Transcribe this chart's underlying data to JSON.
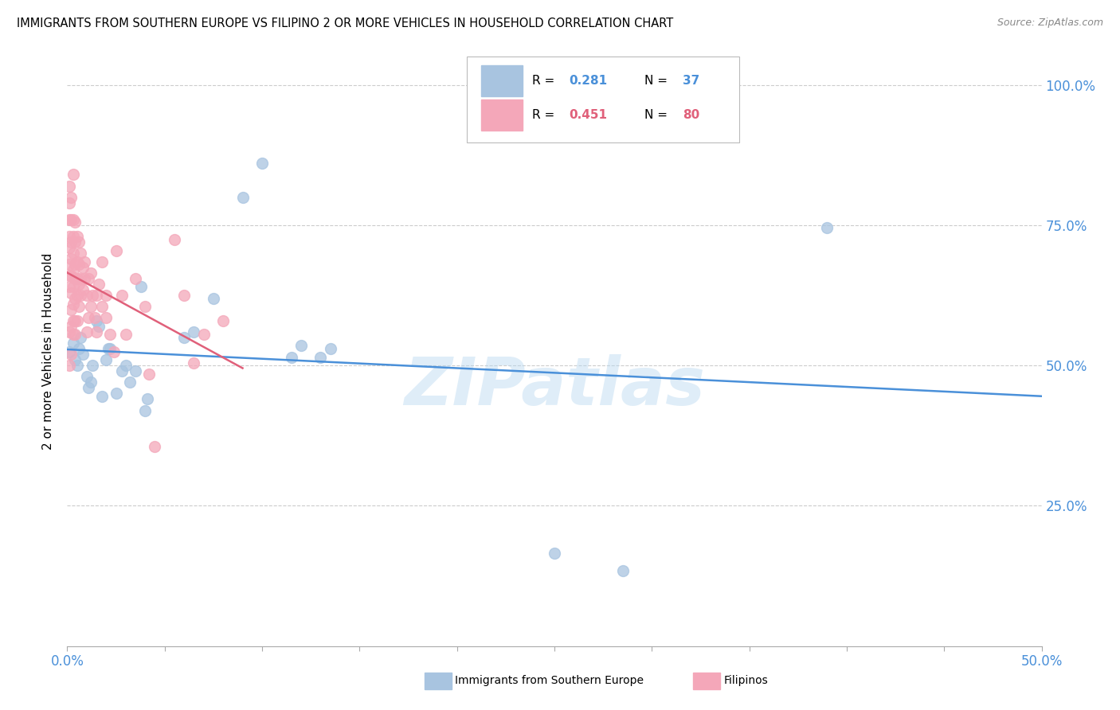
{
  "title": "IMMIGRANTS FROM SOUTHERN EUROPE VS FILIPINO 2 OR MORE VEHICLES IN HOUSEHOLD CORRELATION CHART",
  "source": "Source: ZipAtlas.com",
  "ylabel": "2 or more Vehicles in Household",
  "xlim": [
    0.0,
    0.5
  ],
  "ylim": [
    0.0,
    1.05
  ],
  "watermark": "ZIPatlas",
  "legend_blue_R": "0.281",
  "legend_blue_N": "37",
  "legend_pink_R": "0.451",
  "legend_pink_N": "80",
  "blue_scatter_color": "#a8c4e0",
  "pink_scatter_color": "#f4a7b9",
  "blue_line_color": "#4a90d9",
  "pink_line_color": "#e0607a",
  "blue_scatter": [
    [
      0.001,
      0.525
    ],
    [
      0.003,
      0.54
    ],
    [
      0.004,
      0.51
    ],
    [
      0.005,
      0.5
    ],
    [
      0.006,
      0.53
    ],
    [
      0.007,
      0.55
    ],
    [
      0.008,
      0.52
    ],
    [
      0.01,
      0.48
    ],
    [
      0.011,
      0.46
    ],
    [
      0.012,
      0.47
    ],
    [
      0.013,
      0.5
    ],
    [
      0.015,
      0.58
    ],
    [
      0.016,
      0.57
    ],
    [
      0.018,
      0.445
    ],
    [
      0.02,
      0.51
    ],
    [
      0.021,
      0.53
    ],
    [
      0.022,
      0.53
    ],
    [
      0.025,
      0.45
    ],
    [
      0.028,
      0.49
    ],
    [
      0.03,
      0.5
    ],
    [
      0.032,
      0.47
    ],
    [
      0.035,
      0.49
    ],
    [
      0.038,
      0.64
    ],
    [
      0.04,
      0.42
    ],
    [
      0.041,
      0.44
    ],
    [
      0.06,
      0.55
    ],
    [
      0.065,
      0.56
    ],
    [
      0.075,
      0.62
    ],
    [
      0.09,
      0.8
    ],
    [
      0.1,
      0.86
    ],
    [
      0.115,
      0.515
    ],
    [
      0.12,
      0.535
    ],
    [
      0.13,
      0.515
    ],
    [
      0.135,
      0.53
    ],
    [
      0.25,
      0.165
    ],
    [
      0.285,
      0.135
    ],
    [
      0.39,
      0.745
    ]
  ],
  "pink_scatter": [
    [
      0.001,
      0.5
    ],
    [
      0.001,
      0.56
    ],
    [
      0.001,
      0.64
    ],
    [
      0.001,
      0.66
    ],
    [
      0.001,
      0.68
    ],
    [
      0.001,
      0.71
    ],
    [
      0.001,
      0.73
    ],
    [
      0.001,
      0.76
    ],
    [
      0.001,
      0.79
    ],
    [
      0.001,
      0.82
    ],
    [
      0.002,
      0.52
    ],
    [
      0.002,
      0.57
    ],
    [
      0.002,
      0.6
    ],
    [
      0.002,
      0.63
    ],
    [
      0.002,
      0.66
    ],
    [
      0.002,
      0.69
    ],
    [
      0.002,
      0.72
    ],
    [
      0.002,
      0.76
    ],
    [
      0.002,
      0.8
    ],
    [
      0.003,
      0.555
    ],
    [
      0.003,
      0.58
    ],
    [
      0.003,
      0.61
    ],
    [
      0.003,
      0.64
    ],
    [
      0.003,
      0.67
    ],
    [
      0.003,
      0.7
    ],
    [
      0.003,
      0.73
    ],
    [
      0.003,
      0.76
    ],
    [
      0.003,
      0.84
    ],
    [
      0.004,
      0.555
    ],
    [
      0.004,
      0.58
    ],
    [
      0.004,
      0.62
    ],
    [
      0.004,
      0.655
    ],
    [
      0.004,
      0.68
    ],
    [
      0.004,
      0.72
    ],
    [
      0.004,
      0.755
    ],
    [
      0.005,
      0.58
    ],
    [
      0.005,
      0.625
    ],
    [
      0.005,
      0.655
    ],
    [
      0.005,
      0.685
    ],
    [
      0.005,
      0.73
    ],
    [
      0.006,
      0.605
    ],
    [
      0.006,
      0.645
    ],
    [
      0.006,
      0.68
    ],
    [
      0.006,
      0.72
    ],
    [
      0.007,
      0.625
    ],
    [
      0.007,
      0.655
    ],
    [
      0.007,
      0.7
    ],
    [
      0.008,
      0.635
    ],
    [
      0.008,
      0.675
    ],
    [
      0.009,
      0.655
    ],
    [
      0.009,
      0.685
    ],
    [
      0.01,
      0.56
    ],
    [
      0.01,
      0.625
    ],
    [
      0.011,
      0.585
    ],
    [
      0.011,
      0.655
    ],
    [
      0.012,
      0.605
    ],
    [
      0.012,
      0.665
    ],
    [
      0.013,
      0.625
    ],
    [
      0.014,
      0.585
    ],
    [
      0.015,
      0.56
    ],
    [
      0.015,
      0.625
    ],
    [
      0.016,
      0.645
    ],
    [
      0.018,
      0.605
    ],
    [
      0.018,
      0.685
    ],
    [
      0.02,
      0.585
    ],
    [
      0.02,
      0.625
    ],
    [
      0.022,
      0.555
    ],
    [
      0.024,
      0.525
    ],
    [
      0.025,
      0.705
    ],
    [
      0.028,
      0.625
    ],
    [
      0.03,
      0.555
    ],
    [
      0.035,
      0.655
    ],
    [
      0.04,
      0.605
    ],
    [
      0.042,
      0.485
    ],
    [
      0.045,
      0.355
    ],
    [
      0.055,
      0.725
    ],
    [
      0.06,
      0.625
    ],
    [
      0.065,
      0.505
    ],
    [
      0.07,
      0.555
    ],
    [
      0.08,
      0.58
    ]
  ]
}
